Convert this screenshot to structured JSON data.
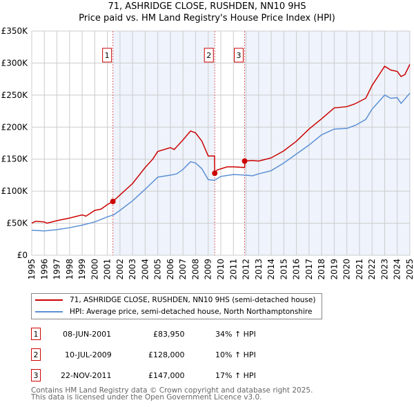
{
  "chart_data": {
    "type": "line",
    "title": "71, ASHRIDGE CLOSE, RUSHDEN, NN10 9HS",
    "subtitle": "Price paid vs. HM Land Registry's House Price Index (HPI)",
    "ylim": [
      0,
      350000
    ],
    "xlim": [
      1995,
      2025
    ],
    "y_ticks": [
      {
        "v": 0,
        "label": "£0"
      },
      {
        "v": 50000,
        "label": "£50K"
      },
      {
        "v": 100000,
        "label": "£100K"
      },
      {
        "v": 150000,
        "label": "£150K"
      },
      {
        "v": 200000,
        "label": "£200K"
      },
      {
        "v": 250000,
        "label": "£250K"
      },
      {
        "v": 300000,
        "label": "£300K"
      },
      {
        "v": 350000,
        "label": "£350K"
      }
    ],
    "x_ticks": [
      "1995",
      "1996",
      "1997",
      "1998",
      "1999",
      "2000",
      "2001",
      "2002",
      "2003",
      "2004",
      "2005",
      "2006",
      "2007",
      "2008",
      "2009",
      "2010",
      "2011",
      "2012",
      "2013",
      "2014",
      "2015",
      "2016",
      "2017",
      "2018",
      "2019",
      "2020",
      "2021",
      "2022",
      "2023",
      "2024",
      "2025"
    ],
    "series": [
      {
        "name": "71, ASHRIDGE CLOSE, RUSHDEN, NN10 9HS (semi-detached house)",
        "color": "#cc0000",
        "x": [
          1995,
          1995.3,
          1996,
          1996.2,
          1997,
          1998,
          1999,
          1999.3,
          2000,
          2000.5,
          2001,
          2001.44,
          2002,
          2003,
          2004,
          2004.6,
          2005,
          2006,
          2006.3,
          2007,
          2007.6,
          2008,
          2008.5,
          2009,
          2009.5,
          2009.52,
          2009.7,
          2010.5,
          2011,
          2011.89,
          2011.9,
          2012.5,
          2013,
          2014,
          2015,
          2016,
          2017,
          2018,
          2019,
          2020,
          2020.6,
          2021.5,
          2022,
          2022.5,
          2023,
          2023.5,
          2024,
          2024.3,
          2024.6,
          2025
        ],
        "y": [
          50000,
          53000,
          52000,
          50000,
          54000,
          58000,
          63000,
          61000,
          70000,
          72000,
          79000,
          83950,
          94000,
          112000,
          137000,
          150000,
          162000,
          168000,
          165000,
          180000,
          194000,
          191000,
          178000,
          155000,
          155000,
          128000,
          133000,
          138000,
          138000,
          137000,
          147000,
          148000,
          147000,
          152000,
          163000,
          178000,
          197000,
          213000,
          230000,
          232000,
          236000,
          245000,
          265000,
          280000,
          295000,
          289000,
          287000,
          279000,
          282000,
          298000
        ]
      },
      {
        "name": "HPI: Average price, semi-detached house, North Northamptonshire",
        "color": "#5b8fd4",
        "x": [
          1995,
          1996,
          1997,
          1998,
          1999,
          2000,
          2001,
          2001.5,
          2002,
          2003,
          2004,
          2005,
          2006,
          2006.5,
          2007,
          2007.6,
          2008,
          2008.5,
          2009,
          2009.5,
          2010,
          2011,
          2012,
          2012.5,
          2013,
          2014,
          2015,
          2016,
          2017,
          2018,
          2019,
          2020,
          2020.7,
          2021.5,
          2022,
          2023,
          2023.5,
          2024,
          2024.3,
          2025
        ],
        "y": [
          39000,
          38000,
          40000,
          43000,
          47000,
          52000,
          60000,
          63000,
          70000,
          85000,
          103000,
          122000,
          125000,
          127000,
          134000,
          146000,
          144000,
          135000,
          118000,
          117000,
          123000,
          126000,
          125000,
          124000,
          127000,
          132000,
          144000,
          158000,
          172000,
          188000,
          197000,
          198000,
          203000,
          212000,
          228000,
          250000,
          245000,
          246000,
          237000,
          253000
        ]
      }
    ],
    "sales": [
      {
        "n": "1",
        "x": 2001.44,
        "date": "08-JUN-2001",
        "price": 83950,
        "price_label": "£83,950",
        "hpi": "34% ↑ HPI"
      },
      {
        "n": "2",
        "x": 2009.52,
        "date": "10-JUL-2009",
        "price": 128000,
        "price_label": "£128,000",
        "hpi": "10% ↑ HPI"
      },
      {
        "n": "3",
        "x": 2011.89,
        "date": "22-NOV-2011",
        "price": 147000,
        "price_label": "£147,000",
        "hpi": "17% ↑ HPI"
      }
    ]
  },
  "footer": [
    "Contains HM Land Registry data © Crown copyright and database right 2025.",
    "This data is licensed under the Open Government Licence v3.0."
  ]
}
